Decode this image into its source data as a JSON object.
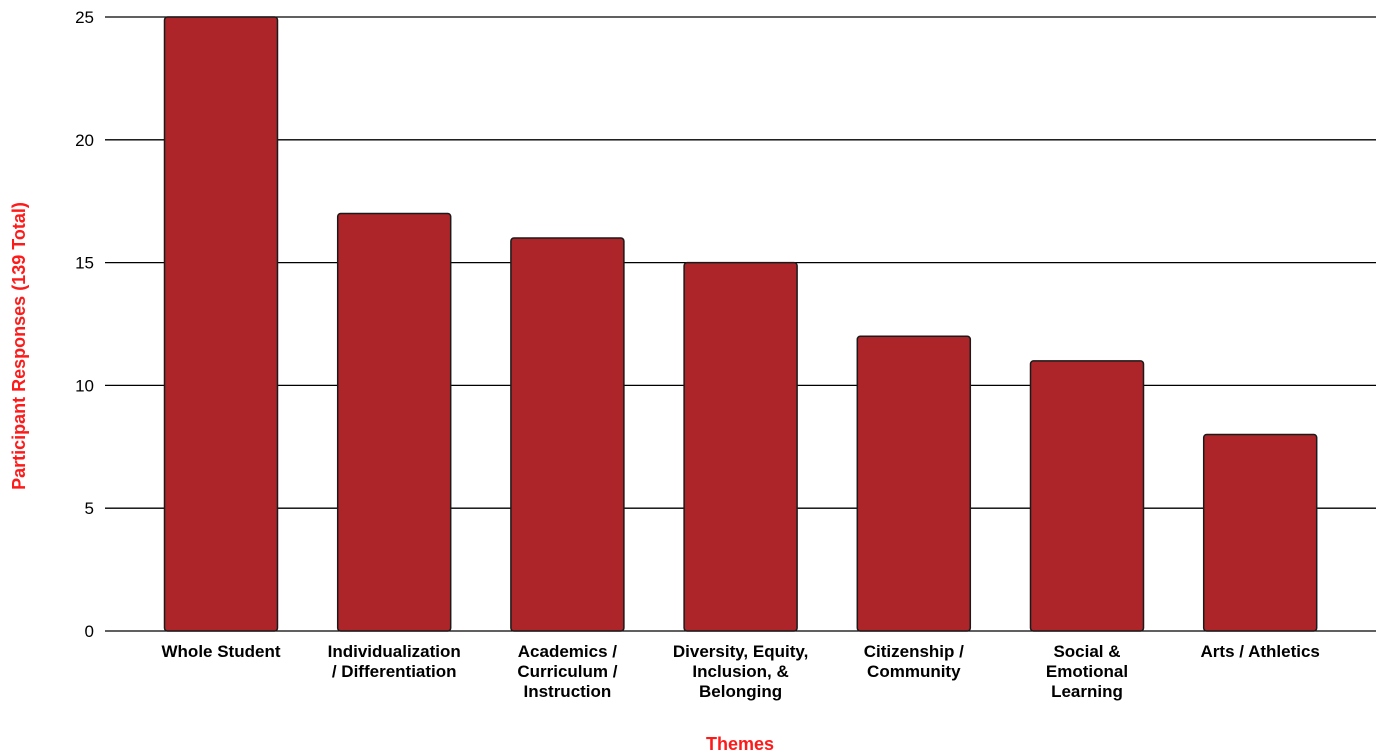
{
  "chart_data": {
    "type": "bar",
    "categories": [
      "Whole Student",
      "Individualization / Differentiation",
      "Academics / Curriculum / Instruction",
      "Diversity, Equity, Inclusion, & Belonging",
      "Citizenship / Community",
      "Social & Emotional Learning",
      "Arts / Athletics"
    ],
    "category_label_lines": [
      [
        "Whole Student"
      ],
      [
        "Individualization",
        "/ Differentiation"
      ],
      [
        "Academics /",
        "Curriculum /",
        "Instruction"
      ],
      [
        "Diversity, Equity,",
        "Inclusion, &",
        "Belonging"
      ],
      [
        "Citizenship /",
        "Community"
      ],
      [
        "Social &",
        "Emotional",
        "Learning"
      ],
      [
        "Arts / Athletics"
      ]
    ],
    "values": [
      25,
      17,
      16,
      15,
      12,
      11,
      8
    ],
    "title": "",
    "xlabel": "Themes",
    "ylabel": "Participant Responses (139 Total)",
    "ylim": [
      0,
      25
    ],
    "yticks": [
      0,
      5,
      10,
      15,
      20,
      25
    ],
    "grid": true,
    "legend": "none",
    "colors": {
      "bar_fill": "#ae2529",
      "bar_stroke": "#1a1a1a",
      "axis_title": "#ff1a1a",
      "grid": "#000000"
    }
  }
}
